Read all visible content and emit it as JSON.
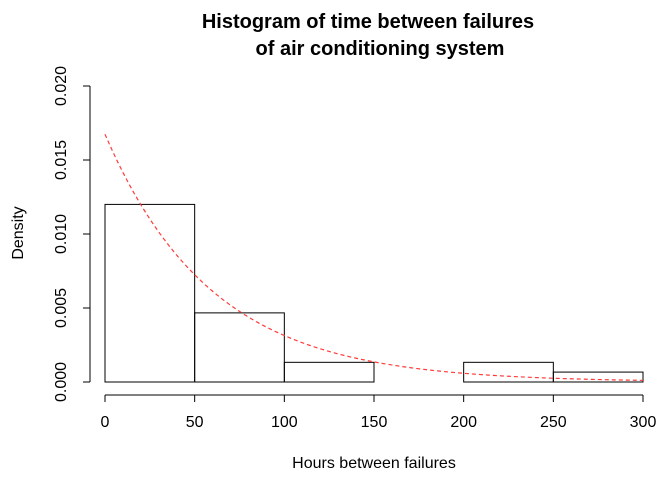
{
  "chart_data": {
    "type": "bar",
    "title_lines": [
      "Histogram of time between failures",
      "of air conditioning system"
    ],
    "xlabel": "Hours between failures",
    "ylabel": "Density",
    "xlim": [
      0,
      300
    ],
    "ylim": [
      0,
      0.02
    ],
    "x_ticks": [
      "0",
      "50",
      "100",
      "150",
      "200",
      "250",
      "300"
    ],
    "y_ticks": [
      "0.000",
      "0.005",
      "0.010",
      "0.015",
      "0.020"
    ],
    "bins": [
      {
        "from": 0,
        "to": 50,
        "density": 0.012
      },
      {
        "from": 50,
        "to": 100,
        "density": 0.00467
      },
      {
        "from": 100,
        "to": 150,
        "density": 0.00133
      },
      {
        "from": 150,
        "to": 200,
        "density": 0.0
      },
      {
        "from": 200,
        "to": 250,
        "density": 0.00133
      },
      {
        "from": 250,
        "to": 300,
        "density": 0.00067
      }
    ],
    "density_curve": {
      "type": "exponential",
      "rate": 0.01674,
      "color": "#ff3b3b",
      "style": "dashed"
    },
    "grid": false,
    "legend": "none"
  }
}
